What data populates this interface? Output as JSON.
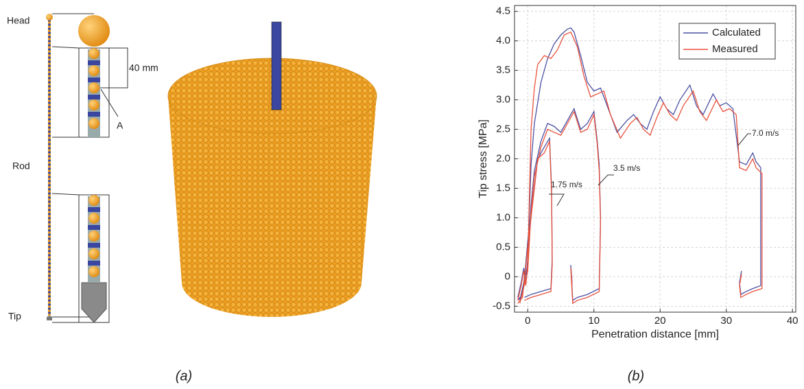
{
  "panel_a": {
    "labels": {
      "head": "Head",
      "rod": "Rod",
      "tip": "Tip",
      "spacing": "40 mm",
      "point": "A"
    },
    "caption": "(a)"
  },
  "panel_b": {
    "caption": "(b)"
  },
  "chart_data": {
    "type": "line",
    "x_label": "Penetration distance [mm]",
    "y_label": "Tip stress [MPa]",
    "xlim": [
      -2,
      40.5
    ],
    "ylim": [
      -0.6,
      4.6
    ],
    "xticks": [
      0,
      10,
      20,
      30,
      40
    ],
    "yticks": [
      -0.5,
      0,
      0.5,
      {
        "value": 1,
        "label": "1.0"
      },
      1.5,
      {
        "value": 2,
        "label": "2.0"
      },
      2.5,
      {
        "value": 3,
        "label": "3.0"
      },
      3.5,
      {
        "value": 4,
        "label": "4.0"
      },
      4.5
    ],
    "grid": true,
    "legend": "upper right",
    "annotations": [
      "7.0 m/s",
      "3.5 m/s",
      "1.75 m/s"
    ],
    "series": [
      {
        "name": "Calculated",
        "color": "#4a4fa3",
        "x": [
          -1.5,
          -1,
          -0.6,
          -0.3,
          0,
          0.5,
          1,
          2,
          3,
          4,
          5,
          6,
          6.5,
          7,
          8,
          9,
          10,
          11,
          12,
          13.5,
          15,
          16,
          17,
          18,
          19,
          20,
          21,
          22,
          23,
          24.5,
          25.5,
          26.5,
          28,
          29,
          30,
          31,
          32,
          33,
          34,
          34.5,
          35.2,
          35.2,
          34,
          33,
          32.2,
          32,
          32.3,
          null,
          -1.5,
          -0.8,
          -0.4,
          0,
          0.5,
          1,
          1.5,
          2.5,
          3.3,
          3.6,
          3.7,
          3.5,
          2,
          0.5,
          -0.5,
          null,
          -1.2,
          0,
          0.5,
          1,
          2,
          3,
          4,
          5,
          6,
          7,
          8,
          9,
          10,
          10.5,
          10.8,
          11,
          10.8,
          9,
          7.5,
          6.8,
          6.5,
          6.7
        ],
        "values": [
          -0.35,
          -0.1,
          0.15,
          -0.1,
          0.3,
          1.9,
          2.6,
          3.3,
          3.7,
          3.95,
          4.1,
          4.2,
          4.22,
          4.15,
          3.75,
          3.3,
          3.15,
          3.2,
          2.9,
          2.45,
          2.65,
          2.75,
          2.6,
          2.5,
          2.8,
          3.05,
          2.85,
          2.75,
          3.0,
          3.25,
          2.9,
          2.75,
          3.1,
          2.9,
          2.95,
          2.85,
          1.95,
          1.9,
          2.1,
          1.95,
          1.85,
          -0.15,
          -0.2,
          -0.25,
          -0.3,
          -0.1,
          0.1,
          null,
          -0.4,
          -0.3,
          0.1,
          0.6,
          1.1,
          1.5,
          2.0,
          2.2,
          2.35,
          1.5,
          0.3,
          -0.2,
          -0.25,
          -0.3,
          -0.35,
          null,
          -0.4,
          0.2,
          1.2,
          1.8,
          2.3,
          2.6,
          2.55,
          2.45,
          2.65,
          2.85,
          2.5,
          2.6,
          2.8,
          2.3,
          1.9,
          1.0,
          -0.2,
          -0.3,
          -0.35,
          -0.4,
          0.2,
          -0.1
        ]
      },
      {
        "name": "Measured",
        "color": "#e8503a",
        "x": [
          -1.5,
          -1,
          -0.6,
          -0.3,
          0,
          0.5,
          1,
          1.5,
          2.5,
          3.5,
          4.5,
          5.5,
          6.5,
          7.5,
          8.5,
          9.5,
          10.5,
          11.5,
          12.5,
          14,
          15.5,
          16.5,
          17.5,
          18.5,
          19.5,
          20.5,
          21.5,
          22.5,
          23.5,
          25,
          26,
          27,
          28.5,
          29.5,
          30.5,
          31.5,
          32,
          33,
          34,
          34.5,
          35.4,
          35.4,
          34,
          33,
          32.2,
          32,
          32.3,
          null,
          -1.5,
          -0.8,
          -0.4,
          0,
          0.5,
          1,
          1.5,
          2.5,
          3.3,
          3.6,
          3.7,
          3.5,
          2,
          0.5,
          -0.5,
          null,
          -1.2,
          0,
          0.5,
          1,
          2,
          3,
          4,
          5,
          6,
          7,
          8,
          9,
          10,
          10.5,
          10.8,
          11,
          10.8,
          9,
          7.5,
          6.8,
          6.5,
          6.7
        ],
        "values": [
          -0.4,
          -0.15,
          0.1,
          -0.15,
          0.2,
          2.5,
          3.2,
          3.6,
          3.75,
          3.7,
          3.85,
          4.1,
          4.15,
          3.9,
          3.4,
          3.05,
          3.1,
          3.15,
          2.75,
          2.35,
          2.6,
          2.7,
          2.5,
          2.4,
          2.7,
          2.95,
          2.75,
          2.65,
          2.9,
          3.15,
          2.8,
          2.65,
          3.0,
          2.8,
          2.85,
          2.75,
          1.85,
          1.8,
          2.0,
          1.85,
          1.75,
          -0.2,
          -0.25,
          -0.3,
          -0.35,
          -0.15,
          0.05,
          null,
          -0.45,
          -0.35,
          0.05,
          0.5,
          1.0,
          1.5,
          2.0,
          2.1,
          2.3,
          1.4,
          0.2,
          -0.25,
          -0.3,
          -0.35,
          -0.4,
          null,
          -0.45,
          0.1,
          1.1,
          1.7,
          2.2,
          2.5,
          2.45,
          2.4,
          2.6,
          2.8,
          2.45,
          2.5,
          2.75,
          2.25,
          1.8,
          0.9,
          -0.25,
          -0.35,
          -0.4,
          -0.45,
          0.15,
          -0.15
        ]
      }
    ]
  }
}
